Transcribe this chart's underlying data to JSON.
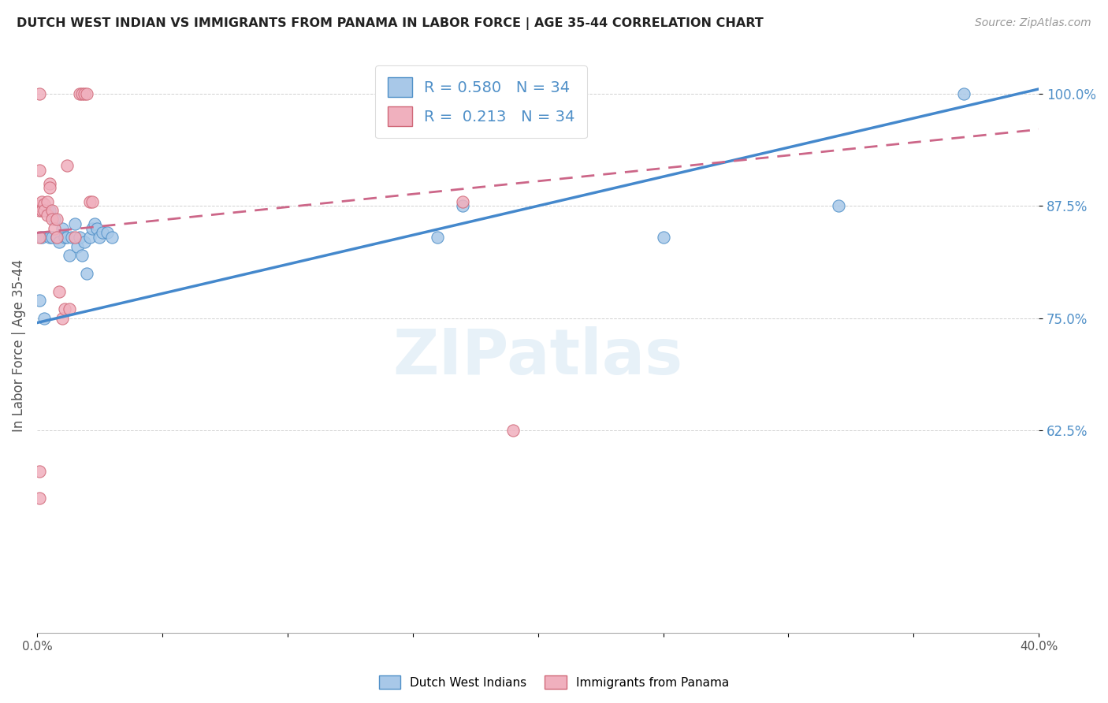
{
  "title": "DUTCH WEST INDIAN VS IMMIGRANTS FROM PANAMA IN LABOR FORCE | AGE 35-44 CORRELATION CHART",
  "source": "Source: ZipAtlas.com",
  "ylabel": "In Labor Force | Age 35-44",
  "xlim": [
    0.0,
    0.4
  ],
  "ylim": [
    0.4,
    1.04
  ],
  "xtick_positions": [
    0.0,
    0.05,
    0.1,
    0.15,
    0.2,
    0.25,
    0.3,
    0.35,
    0.4
  ],
  "xticklabels": [
    "0.0%",
    "",
    "",
    "",
    "",
    "",
    "",
    "",
    "40.0%"
  ],
  "ytick_positions": [
    0.625,
    0.75,
    0.875,
    1.0
  ],
  "yticklabels": [
    "62.5%",
    "75.0%",
    "87.5%",
    "100.0%"
  ],
  "blue_fill": "#a8c8e8",
  "blue_edge": "#5090c8",
  "pink_fill": "#f0b0be",
  "pink_edge": "#d06878",
  "blue_line_color": "#4488cc",
  "pink_line_color": "#cc6688",
  "R_blue": 0.58,
  "N_blue": 34,
  "R_pink": 0.213,
  "N_pink": 34,
  "legend_label_blue": "Dutch West Indians",
  "legend_label_pink": "Immigrants from Panama",
  "watermark": "ZIPatlas",
  "blue_scatter_x": [
    0.001,
    0.002,
    0.003,
    0.004,
    0.005,
    0.005,
    0.006,
    0.007,
    0.008,
    0.009,
    0.01,
    0.011,
    0.012,
    0.013,
    0.014,
    0.015,
    0.016,
    0.017,
    0.018,
    0.019,
    0.02,
    0.021,
    0.022,
    0.023,
    0.024,
    0.025,
    0.026,
    0.028,
    0.03,
    0.16,
    0.17,
    0.25,
    0.32,
    0.37
  ],
  "blue_scatter_y": [
    0.77,
    0.84,
    0.75,
    0.87,
    0.84,
    0.87,
    0.84,
    0.86,
    0.84,
    0.835,
    0.85,
    0.84,
    0.84,
    0.82,
    0.84,
    0.855,
    0.83,
    0.84,
    0.82,
    0.835,
    0.8,
    0.84,
    0.85,
    0.855,
    0.85,
    0.84,
    0.845,
    0.845,
    0.84,
    0.84,
    0.875,
    0.84,
    0.875,
    1.0
  ],
  "pink_scatter_x": [
    0.001,
    0.001,
    0.001,
    0.002,
    0.002,
    0.003,
    0.003,
    0.004,
    0.004,
    0.005,
    0.005,
    0.006,
    0.006,
    0.007,
    0.008,
    0.008,
    0.009,
    0.01,
    0.011,
    0.012,
    0.013,
    0.015,
    0.017,
    0.018,
    0.019,
    0.02,
    0.021,
    0.022,
    0.17,
    0.19,
    0.001,
    0.001,
    0.001,
    0.001
  ],
  "pink_scatter_y": [
    0.84,
    0.87,
    0.875,
    0.88,
    0.87,
    0.877,
    0.87,
    0.88,
    0.865,
    0.9,
    0.895,
    0.87,
    0.86,
    0.85,
    0.84,
    0.86,
    0.78,
    0.75,
    0.76,
    0.92,
    0.76,
    0.84,
    1.0,
    1.0,
    1.0,
    1.0,
    0.88,
    0.88,
    0.88,
    0.625,
    0.58,
    0.55,
    1.0,
    0.915
  ],
  "blue_line_x0": 0.0,
  "blue_line_y0": 0.745,
  "blue_line_x1": 0.4,
  "blue_line_y1": 1.005,
  "pink_line_x0": 0.0,
  "pink_line_y0": 0.845,
  "pink_line_x1": 0.4,
  "pink_line_y1": 0.96
}
